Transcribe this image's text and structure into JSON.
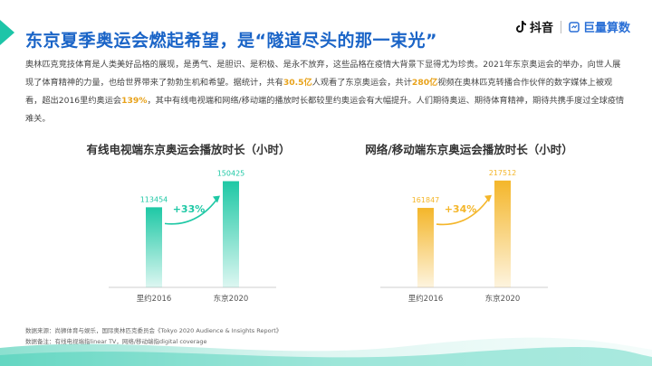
{
  "header": {
    "title": "东京夏季奥运会燃起希望，是“隧道尽头的那一束光”",
    "brand1": "抖音",
    "brand2": "巨量算数"
  },
  "intro": {
    "p1": "奥林匹克竞技体育是人类美好品格的展现，是勇气、是胆识、是积极、是永不放弃，这些品格在疫情大背景下显得尤为珍贵。2021年东京奥运会的举办，向世人展现了体育精神的力量，也给世界带来了勃勃生机和希望。据统计，共有",
    "h1": "30.5亿",
    "p2": "人观看了东京奥运会，共计",
    "h2": "280亿",
    "p3": "视频在奥林匹克转播合作伙伴的数字媒体上被观看，超出2016里约奥运会",
    "h3": "139%",
    "p4": "，其中有线电视端和网络/移动端的播放时长都较里约奥运会有大幅提升。人们期待奥运、期待体育精神，期待共携手度过全球疫情难关。"
  },
  "colors": {
    "title": "#1a64c7",
    "accent": "#1dc5a8",
    "highlight": "#e8a21a"
  },
  "chart_data": [
    {
      "type": "bar",
      "title": "有线电视端东京奥运会播放时长（小时）",
      "categories": [
        "里约2016",
        "东京2020"
      ],
      "values": [
        113454,
        150425
      ],
      "value_labels": [
        "113454",
        "150425"
      ],
      "growth": "+33%",
      "ylim": [
        0,
        160000
      ],
      "colors": [
        "#1ec8a5",
        "#1ec8a5"
      ]
    },
    {
      "type": "bar",
      "title": "网络/移动端东京奥运会播放时长（小时）",
      "categories": [
        "里约2016",
        "东京2020"
      ],
      "values": [
        161847,
        217512
      ],
      "value_labels": [
        "161847",
        "217512"
      ],
      "growth": "+34%",
      "ylim": [
        0,
        230000
      ],
      "colors": [
        "#f4b62a",
        "#f4b62a"
      ]
    }
  ],
  "footer": {
    "source": "数据来源：尚狮体育与娱乐，国际奥林匹克委员会《Tokyo 2020 Audience & Insights Report》",
    "note": "数据备注：有线电视端指linear TV，网络/移动端指digital coverage"
  }
}
